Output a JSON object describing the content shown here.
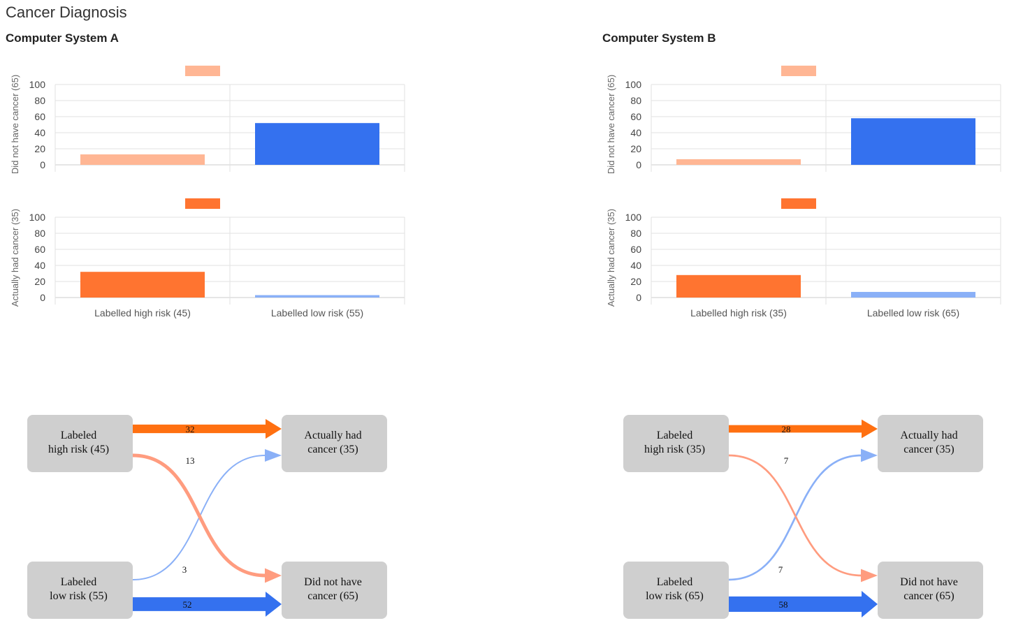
{
  "page": {
    "title": "Cancer Diagnosis"
  },
  "colors": {
    "no_cancer_high": "#ffb694",
    "no_cancer_low": "#3471ef",
    "cancer_high": "#ff7430",
    "cancer_low": "#8ab0f7",
    "flow_high_to_cancer": "#ff7011",
    "flow_high_to_nocancer": "#ff9c7f",
    "flow_low_to_cancer": "#8ab0f7",
    "flow_low_to_nocancer": "#3471ef",
    "node_fill": "#cfcfcf",
    "grid": "#e2e2e2"
  },
  "systems": [
    {
      "name": "Computer System A",
      "bar_x_labels": [
        "Labelled high risk (45)",
        "Labelled low risk (55)"
      ],
      "sankey": {
        "nodes": {
          "high": [
            "Labeled",
            "high risk (45)"
          ],
          "low": [
            "Labeled",
            "low risk (55)"
          ],
          "cancer": [
            "Actually had",
            "cancer (35)"
          ],
          "nocancer": [
            "Did not have",
            "cancer (65)"
          ]
        },
        "flows": {
          "high_cancer": 32,
          "high_nocancer": 13,
          "low_cancer": 3,
          "low_nocancer": 52
        }
      }
    },
    {
      "name": "Computer System B",
      "bar_x_labels": [
        "Labelled high risk (35)",
        "Labelled low risk (65)"
      ],
      "sankey": {
        "nodes": {
          "high": [
            "Labeled",
            "high risk (35)"
          ],
          "low": [
            "Labeled",
            "low risk (65)"
          ],
          "cancer": [
            "Actually had",
            "cancer (35)"
          ],
          "nocancer": [
            "Did not have",
            "cancer (65)"
          ]
        },
        "flows": {
          "high_cancer": 28,
          "high_nocancer": 7,
          "low_cancer": 7,
          "low_nocancer": 58
        }
      }
    }
  ],
  "chart_data": [
    {
      "type": "bar",
      "chart": "Computer System A - Did not have cancer",
      "categories": [
        "Labelled high risk (45)",
        "Labelled low risk (55)"
      ],
      "values": [
        13,
        52
      ],
      "ylabel": "Did not have cancer (65)",
      "ylim": [
        0,
        100
      ],
      "yticks": [
        0,
        20,
        40,
        60,
        80,
        100
      ],
      "grid": true,
      "colors": [
        "#ffb694",
        "#3471ef"
      ],
      "legend": "top-center swatch"
    },
    {
      "type": "bar",
      "chart": "Computer System A - Actually had cancer",
      "categories": [
        "Labelled high risk (45)",
        "Labelled low risk (55)"
      ],
      "values": [
        32,
        3
      ],
      "ylabel": "Actually had cancer (35)",
      "ylim": [
        0,
        100
      ],
      "yticks": [
        0,
        20,
        40,
        60,
        80,
        100
      ],
      "grid": true,
      "colors": [
        "#ff7430",
        "#8ab0f7"
      ],
      "legend": "top-center swatch"
    },
    {
      "type": "bar",
      "chart": "Computer System B - Did not have cancer",
      "categories": [
        "Labelled high risk (35)",
        "Labelled low risk (65)"
      ],
      "values": [
        7,
        58
      ],
      "ylabel": "Did not have cancer (65)",
      "ylim": [
        0,
        100
      ],
      "yticks": [
        0,
        20,
        40,
        60,
        80,
        100
      ],
      "grid": true,
      "colors": [
        "#ffb694",
        "#3471ef"
      ],
      "legend": "top-center swatch"
    },
    {
      "type": "bar",
      "chart": "Computer System B - Actually had cancer",
      "categories": [
        "Labelled high risk (35)",
        "Labelled low risk (65)"
      ],
      "values": [
        28,
        7
      ],
      "ylabel": "Actually had cancer (35)",
      "ylim": [
        0,
        100
      ],
      "yticks": [
        0,
        20,
        40,
        60,
        80,
        100
      ],
      "grid": true,
      "colors": [
        "#ff7430",
        "#8ab0f7"
      ],
      "legend": "top-center swatch"
    }
  ]
}
